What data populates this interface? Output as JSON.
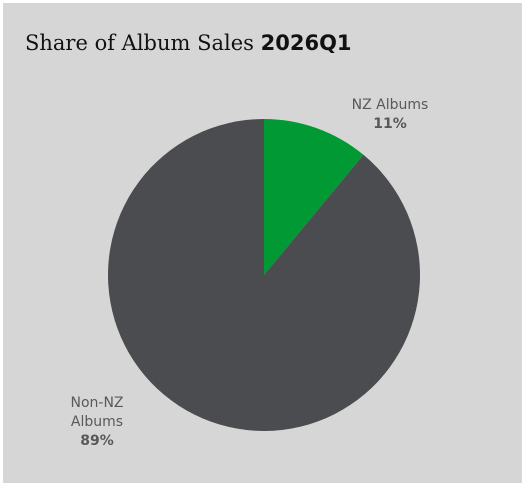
{
  "chart_data": {
    "type": "pie",
    "title": "Share of Album Sales",
    "title_period": "2026Q1",
    "start_angle_deg": 0,
    "direction": "clockwise",
    "slices": [
      {
        "label": "NZ Albums",
        "label_lines": [
          "NZ Albums"
        ],
        "value": 11,
        "value_label": "11%",
        "color": "#009933"
      },
      {
        "label": "Non-NZ Albums",
        "label_lines": [
          "Non-NZ",
          "Albums"
        ],
        "value": 89,
        "value_label": "89%",
        "color": "#4a4c4f"
      }
    ],
    "background_color": "#d6d6d6",
    "legend": "none"
  }
}
